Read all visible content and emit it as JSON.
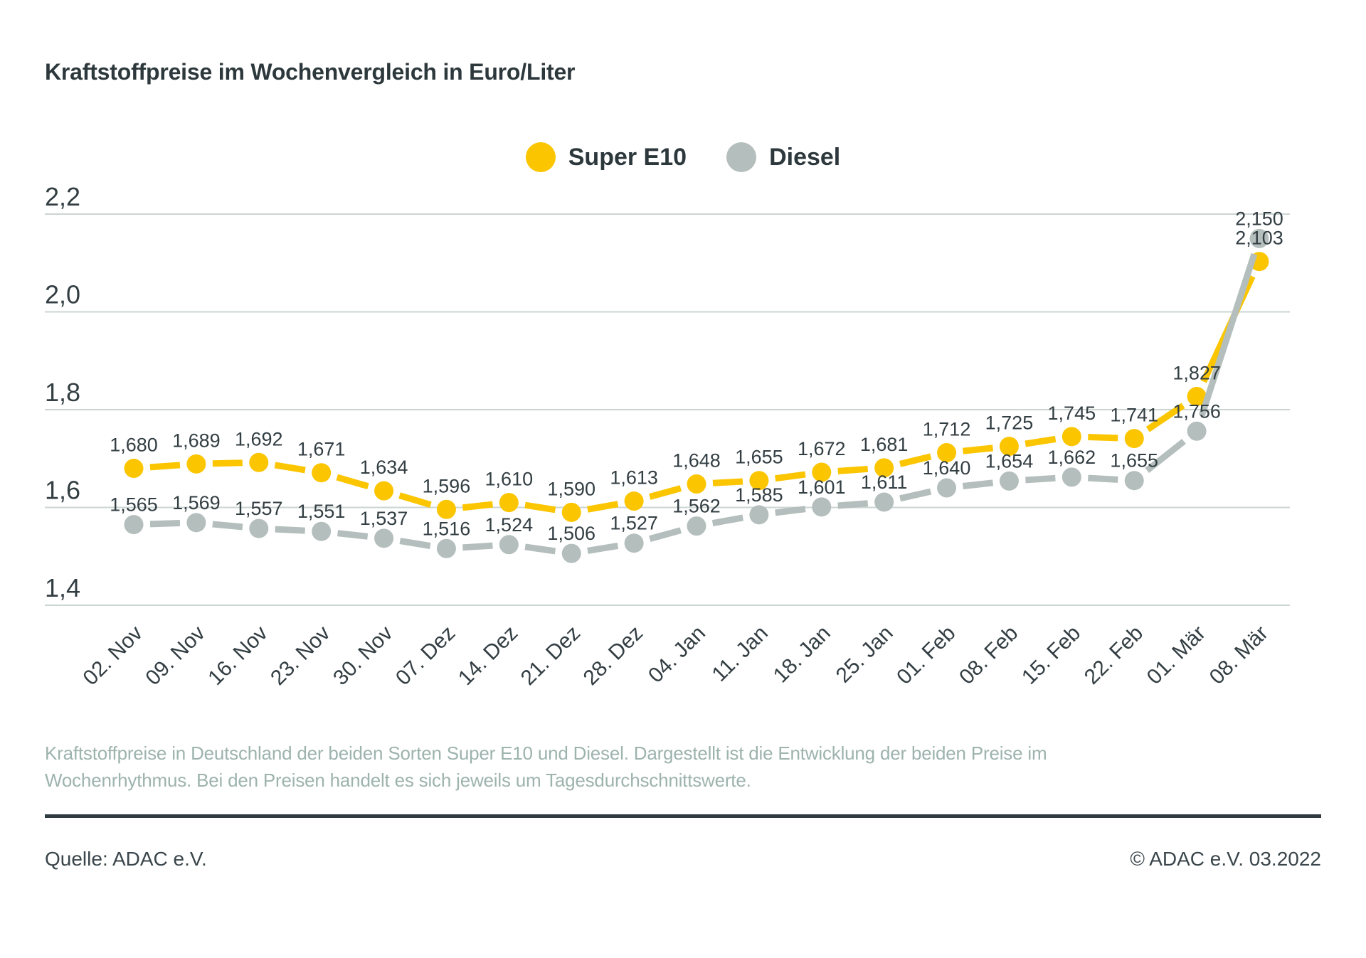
{
  "chart_data": {
    "type": "line",
    "title": "Kraftstoffpreise im Wochenvergleich in Euro/Liter",
    "unit": "Euro/Liter",
    "categories": [
      "02. Nov",
      "09. Nov",
      "16. Nov",
      "23. Nov",
      "30. Nov",
      "07. Dez",
      "14. Dez",
      "21. Dez",
      "28. Dez",
      "04. Jan",
      "11. Jan",
      "18. Jan",
      "25. Jan",
      "01. Feb",
      "08. Feb",
      "15. Feb",
      "22. Feb",
      "01. Mär",
      "08. Mär"
    ],
    "series": [
      {
        "name": "Super E10",
        "color": "#FBC500",
        "values": [
          1.68,
          1.689,
          1.692,
          1.671,
          1.634,
          1.596,
          1.61,
          1.59,
          1.613,
          1.648,
          1.655,
          1.672,
          1.681,
          1.712,
          1.725,
          1.745,
          1.741,
          1.827,
          2.103
        ]
      },
      {
        "name": "Diesel",
        "color": "#B4BEBC",
        "values": [
          1.565,
          1.569,
          1.557,
          1.551,
          1.537,
          1.516,
          1.524,
          1.506,
          1.527,
          1.562,
          1.585,
          1.601,
          1.611,
          1.64,
          1.654,
          1.662,
          1.655,
          1.756,
          2.15
        ]
      }
    ],
    "yticks": [
      1.4,
      1.6,
      1.8,
      2.0,
      2.2
    ],
    "ylim": [
      1.4,
      2.2
    ],
    "grid": true,
    "legend_position": "top-center",
    "decimal_separator": ",",
    "colors": {
      "gridline": "#CBD5D2",
      "axis_text": "#333E43",
      "data_label_text": "#333E43"
    }
  },
  "description": {
    "lines": [
      "Kraftstoffpreise in Deutschland der beiden Sorten Super E10 und Diesel. Dargestellt ist die Entwicklung der beiden Preise im",
      "Wochenrhythmus. Bei den Preisen handelt es sich jeweils um Tagesdurchschnittswerte."
    ]
  },
  "footer": {
    "source": "Quelle: ADAC e.V.",
    "copyright": "© ADAC e.V. 03.2022"
  }
}
